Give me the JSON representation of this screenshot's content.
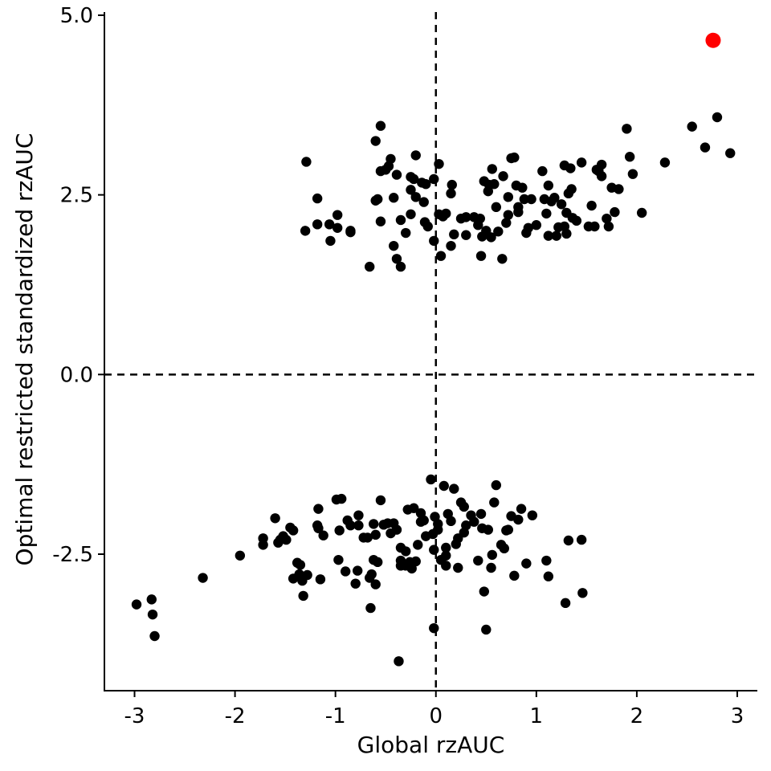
{
  "chart_data": {
    "type": "scatter",
    "title": "",
    "xlabel": "Global rzAUC",
    "ylabel": "Optimal restricted standardized rzAUC",
    "xlim": [
      -3.3,
      3.2
    ],
    "ylim": [
      -4.4,
      5.1
    ],
    "x_ticks": [
      -3,
      -2,
      -1,
      0,
      1,
      2,
      3
    ],
    "x_tick_labels": [
      "-3",
      "-2",
      "-1",
      "0",
      "1",
      "2",
      "3"
    ],
    "y_ticks": [
      -2.5,
      0.0,
      2.5,
      5.0
    ],
    "y_tick_labels": [
      "-2.5",
      "0.0",
      "2.5",
      "5.0"
    ],
    "reference_lines": [
      {
        "orientation": "vertical",
        "value": 0,
        "style": "dashed"
      },
      {
        "orientation": "horizontal",
        "value": 0,
        "style": "dashed"
      }
    ],
    "grid": false,
    "legend": "none",
    "colors": {
      "points": "#000000",
      "highlight": "#ff0000"
    },
    "highlight_point": {
      "x": 2.76,
      "y": 4.65
    },
    "points": [
      [
        -1.29,
        2.96
      ],
      [
        -1.18,
        2.45
      ],
      [
        -1.18,
        2.09
      ],
      [
        -1.3,
        2.0
      ],
      [
        -1.06,
        2.09
      ],
      [
        -0.98,
        2.22
      ],
      [
        -0.98,
        2.04
      ],
      [
        -1.05,
        1.86
      ],
      [
        -0.85,
        1.98
      ],
      [
        -0.85,
        2.0
      ],
      [
        -0.66,
        1.5
      ],
      [
        -0.6,
        3.25
      ],
      [
        -0.55,
        3.46
      ],
      [
        -0.6,
        2.42
      ],
      [
        -0.58,
        2.44
      ],
      [
        -0.55,
        2.13
      ],
      [
        -0.55,
        2.83
      ],
      [
        -0.5,
        2.85
      ],
      [
        -0.47,
        2.9
      ],
      [
        -0.45,
        3.0
      ],
      [
        -0.42,
        2.46
      ],
      [
        -0.42,
        1.79
      ],
      [
        -0.39,
        2.78
      ],
      [
        -0.39,
        1.61
      ],
      [
        -0.35,
        1.5
      ],
      [
        -0.35,
        2.15
      ],
      [
        -0.3,
        1.97
      ],
      [
        -0.25,
        2.75
      ],
      [
        -0.25,
        2.57
      ],
      [
        -0.25,
        2.23
      ],
      [
        -0.22,
        2.72
      ],
      [
        -0.2,
        3.05
      ],
      [
        -0.2,
        2.47
      ],
      [
        -0.14,
        2.67
      ],
      [
        -0.12,
        2.4
      ],
      [
        -0.11,
        2.12
      ],
      [
        -0.1,
        2.65
      ],
      [
        -0.08,
        2.06
      ],
      [
        -0.02,
        1.86
      ],
      [
        -0.02,
        2.72
      ],
      [
        0.03,
        2.93
      ],
      [
        0.03,
        2.23
      ],
      [
        0.05,
        1.65
      ],
      [
        0.07,
        2.2
      ],
      [
        0.1,
        2.24
      ],
      [
        0.15,
        2.52
      ],
      [
        0.15,
        1.79
      ],
      [
        0.16,
        2.64
      ],
      [
        0.18,
        1.95
      ],
      [
        0.25,
        2.17
      ],
      [
        0.3,
        2.19
      ],
      [
        0.3,
        1.94
      ],
      [
        0.38,
        2.19
      ],
      [
        0.42,
        2.08
      ],
      [
        0.44,
        2.17
      ],
      [
        0.45,
        1.65
      ],
      [
        0.46,
        1.92
      ],
      [
        0.48,
        2.69
      ],
      [
        0.5,
        2.0
      ],
      [
        0.52,
        2.55
      ],
      [
        0.53,
        2.64
      ],
      [
        0.55,
        1.91
      ],
      [
        0.56,
        2.86
      ],
      [
        0.58,
        2.65
      ],
      [
        0.6,
        2.33
      ],
      [
        0.62,
        1.99
      ],
      [
        0.66,
        1.61
      ],
      [
        0.67,
        2.76
      ],
      [
        0.7,
        2.11
      ],
      [
        0.72,
        2.47
      ],
      [
        0.72,
        2.22
      ],
      [
        0.75,
        3.01
      ],
      [
        0.78,
        3.02
      ],
      [
        0.8,
        2.63
      ],
      [
        0.82,
        2.33
      ],
      [
        0.82,
        2.26
      ],
      [
        0.86,
        2.6
      ],
      [
        0.88,
        2.44
      ],
      [
        0.9,
        1.97
      ],
      [
        0.92,
        2.04
      ],
      [
        0.95,
        2.44
      ],
      [
        1.0,
        2.08
      ],
      [
        1.06,
        2.83
      ],
      [
        1.08,
        2.44
      ],
      [
        1.1,
        2.24
      ],
      [
        1.12,
        2.63
      ],
      [
        1.12,
        1.93
      ],
      [
        1.15,
        2.41
      ],
      [
        1.18,
        2.46
      ],
      [
        1.2,
        1.93
      ],
      [
        1.22,
        2.05
      ],
      [
        1.25,
        2.37
      ],
      [
        1.28,
        2.91
      ],
      [
        1.28,
        2.06
      ],
      [
        1.3,
        1.96
      ],
      [
        1.3,
        2.25
      ],
      [
        1.32,
        2.52
      ],
      [
        1.34,
        2.87
      ],
      [
        1.35,
        2.58
      ],
      [
        1.36,
        2.18
      ],
      [
        1.4,
        2.14
      ],
      [
        1.45,
        2.95
      ],
      [
        1.52,
        2.06
      ],
      [
        1.55,
        2.35
      ],
      [
        1.58,
        2.06
      ],
      [
        1.6,
        2.85
      ],
      [
        1.62,
        2.83
      ],
      [
        1.65,
        2.92
      ],
      [
        1.65,
        2.76
      ],
      [
        1.7,
        2.17
      ],
      [
        1.72,
        2.06
      ],
      [
        1.75,
        2.6
      ],
      [
        1.78,
        2.26
      ],
      [
        1.82,
        2.58
      ],
      [
        1.9,
        3.42
      ],
      [
        1.93,
        3.03
      ],
      [
        1.96,
        2.79
      ],
      [
        2.05,
        2.25
      ],
      [
        2.28,
        2.95
      ],
      [
        2.55,
        3.45
      ],
      [
        2.68,
        3.16
      ],
      [
        2.8,
        3.58
      ],
      [
        2.93,
        3.08
      ],
      [
        -2.98,
        -3.2
      ],
      [
        -2.83,
        -3.13
      ],
      [
        -2.82,
        -3.34
      ],
      [
        -2.8,
        -3.64
      ],
      [
        -2.32,
        -2.83
      ],
      [
        -1.95,
        -2.52
      ],
      [
        -1.72,
        -2.28
      ],
      [
        -1.72,
        -2.37
      ],
      [
        -1.6,
        -2.0
      ],
      [
        -1.57,
        -2.34
      ],
      [
        -1.55,
        -2.3
      ],
      [
        -1.52,
        -2.25
      ],
      [
        -1.49,
        -2.3
      ],
      [
        -1.45,
        -2.13
      ],
      [
        -1.42,
        -2.17
      ],
      [
        -1.42,
        -2.84
      ],
      [
        -1.38,
        -2.62
      ],
      [
        -1.36,
        -2.78
      ],
      [
        -1.35,
        -2.65
      ],
      [
        -1.33,
        -2.87
      ],
      [
        -1.32,
        -3.08
      ],
      [
        -1.28,
        -2.79
      ],
      [
        -1.18,
        -2.1
      ],
      [
        -1.17,
        -2.14
      ],
      [
        -1.17,
        -1.87
      ],
      [
        -1.15,
        -2.85
      ],
      [
        -1.12,
        -2.24
      ],
      [
        -0.99,
        -1.74
      ],
      [
        -0.97,
        -2.58
      ],
      [
        -0.96,
        -2.17
      ],
      [
        -0.94,
        -1.73
      ],
      [
        -0.9,
        -2.74
      ],
      [
        -0.88,
        -2.03
      ],
      [
        -0.85,
        -2.1
      ],
      [
        -0.8,
        -2.91
      ],
      [
        -0.78,
        -2.73
      ],
      [
        -0.77,
        -1.96
      ],
      [
        -0.77,
        -2.1
      ],
      [
        -0.72,
        -2.27
      ],
      [
        -0.68,
        -2.27
      ],
      [
        -0.66,
        -2.83
      ],
      [
        -0.65,
        -3.25
      ],
      [
        -0.64,
        -2.78
      ],
      [
        -0.62,
        -2.08
      ],
      [
        -0.62,
        -2.58
      ],
      [
        -0.6,
        -2.23
      ],
      [
        -0.6,
        -2.92
      ],
      [
        -0.58,
        -2.61
      ],
      [
        -0.55,
        -1.75
      ],
      [
        -0.52,
        -2.09
      ],
      [
        -0.48,
        -2.07
      ],
      [
        -0.45,
        -2.21
      ],
      [
        -0.42,
        -2.07
      ],
      [
        -0.39,
        -2.16
      ],
      [
        -0.37,
        -3.99
      ],
      [
        -0.35,
        -2.41
      ],
      [
        -0.35,
        -2.59
      ],
      [
        -0.35,
        -2.66
      ],
      [
        -0.3,
        -2.66
      ],
      [
        -0.3,
        -2.46
      ],
      [
        -0.28,
        -1.88
      ],
      [
        -0.26,
        -2.61
      ],
      [
        -0.24,
        -2.7
      ],
      [
        -0.22,
        -1.86
      ],
      [
        -0.2,
        -2.6
      ],
      [
        -0.18,
        -2.37
      ],
      [
        -0.15,
        -2.05
      ],
      [
        -0.15,
        -1.93
      ],
      [
        -0.12,
        -2.03
      ],
      [
        -0.1,
        -2.25
      ],
      [
        -0.05,
        -1.46
      ],
      [
        -0.03,
        -2.22
      ],
      [
        -0.02,
        -3.53
      ],
      [
        -0.02,
        -2.44
      ],
      [
        -0.01,
        -1.98
      ],
      [
        0.02,
        -2.16
      ],
      [
        0.02,
        -2.08
      ],
      [
        0.05,
        -2.58
      ],
      [
        0.08,
        -1.55
      ],
      [
        0.1,
        -2.66
      ],
      [
        0.1,
        -2.52
      ],
      [
        0.1,
        -2.41
      ],
      [
        0.12,
        -1.94
      ],
      [
        0.15,
        -2.04
      ],
      [
        0.18,
        -1.59
      ],
      [
        0.2,
        -2.36
      ],
      [
        0.22,
        -2.28
      ],
      [
        0.22,
        -2.69
      ],
      [
        0.25,
        -1.78
      ],
      [
        0.28,
        -1.84
      ],
      [
        0.28,
        -2.2
      ],
      [
        0.3,
        -2.1
      ],
      [
        0.35,
        -1.96
      ],
      [
        0.38,
        -2.05
      ],
      [
        0.42,
        -2.59
      ],
      [
        0.45,
        -1.94
      ],
      [
        0.46,
        -2.14
      ],
      [
        0.48,
        -3.02
      ],
      [
        0.5,
        -3.55
      ],
      [
        0.52,
        -2.16
      ],
      [
        0.55,
        -2.69
      ],
      [
        0.56,
        -2.51
      ],
      [
        0.58,
        -1.78
      ],
      [
        0.6,
        -1.54
      ],
      [
        0.65,
        -2.37
      ],
      [
        0.68,
        -2.42
      ],
      [
        0.7,
        -2.17
      ],
      [
        0.72,
        -2.16
      ],
      [
        0.75,
        -1.97
      ],
      [
        0.78,
        -2.8
      ],
      [
        0.82,
        -2.02
      ],
      [
        0.85,
        -1.87
      ],
      [
        0.9,
        -2.63
      ],
      [
        0.96,
        -1.96
      ],
      [
        1.1,
        -2.59
      ],
      [
        1.12,
        -2.81
      ],
      [
        1.29,
        -3.18
      ],
      [
        1.32,
        -2.31
      ],
      [
        1.45,
        -2.3
      ],
      [
        1.46,
        -3.04
      ]
    ]
  }
}
